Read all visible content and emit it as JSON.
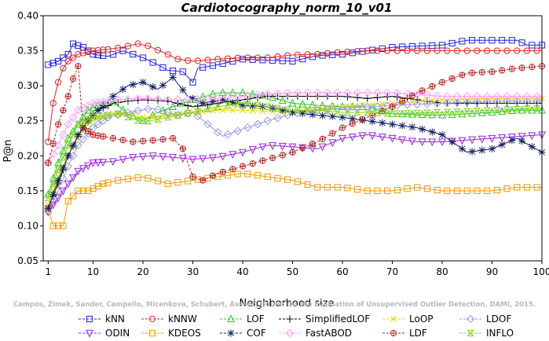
{
  "chart_data": {
    "type": "line",
    "title": "Cardiotocography_norm_10_v01",
    "xlabel": "Neighborhood size",
    "ylabel": "P@n",
    "xlim": [
      0,
      100
    ],
    "ylim": [
      0.05,
      0.4
    ],
    "xticks": [
      1,
      10,
      20,
      30,
      40,
      50,
      60,
      70,
      80,
      90,
      100
    ],
    "yticks": [
      0.05,
      0.1,
      0.15,
      0.2,
      0.25,
      0.3,
      0.35,
      0.4
    ],
    "xtick_labels": [
      "1",
      "10",
      "20",
      "30",
      "40",
      "50",
      "60",
      "70",
      "80",
      "90",
      "100"
    ],
    "ytick_labels": [
      "0.05",
      "0.10",
      "0.15",
      "0.20",
      "0.25",
      "0.30",
      "0.35",
      "0.40"
    ],
    "grid": false,
    "legend_position": "bottom",
    "watermark": "Campos, Zimek, Sander, Campello, Micenkova, Schubert, Assent, Houle: On the Evaluation of Unsupervised Outlier Detection, DAMI, 2015.",
    "series": [
      {
        "name": "kNN",
        "color": "#2222dd",
        "marker": "square",
        "dashed": false,
        "points": [
          [
            1,
            0.33
          ],
          [
            3,
            0.335
          ],
          [
            5,
            0.345
          ],
          [
            6,
            0.36
          ],
          [
            8,
            0.355
          ],
          [
            10,
            0.345
          ],
          [
            13,
            0.342
          ],
          [
            16,
            0.35
          ],
          [
            20,
            0.34
          ],
          [
            23,
            0.33
          ],
          [
            25,
            0.322
          ],
          [
            28,
            0.32
          ],
          [
            30,
            0.305
          ],
          [
            31,
            0.325
          ],
          [
            35,
            0.33
          ],
          [
            40,
            0.338
          ],
          [
            50,
            0.335
          ],
          [
            55,
            0.343
          ],
          [
            60,
            0.345
          ],
          [
            65,
            0.35
          ],
          [
            70,
            0.355
          ],
          [
            80,
            0.358
          ],
          [
            85,
            0.365
          ],
          [
            95,
            0.365
          ],
          [
            97,
            0.358
          ],
          [
            100,
            0.358
          ]
        ]
      },
      {
        "name": "kNNW",
        "color": "#dd2222",
        "marker": "circle",
        "dashed": false,
        "points": [
          [
            1,
            0.22
          ],
          [
            2,
            0.275
          ],
          [
            3,
            0.305
          ],
          [
            4,
            0.325
          ],
          [
            5,
            0.335
          ],
          [
            7,
            0.345
          ],
          [
            10,
            0.35
          ],
          [
            13,
            0.352
          ],
          [
            16,
            0.355
          ],
          [
            19,
            0.36
          ],
          [
            21,
            0.357
          ],
          [
            24,
            0.348
          ],
          [
            27,
            0.338
          ],
          [
            30,
            0.335
          ],
          [
            35,
            0.338
          ],
          [
            40,
            0.34
          ],
          [
            45,
            0.34
          ],
          [
            50,
            0.344
          ],
          [
            55,
            0.345
          ],
          [
            60,
            0.348
          ],
          [
            65,
            0.35
          ],
          [
            70,
            0.35
          ],
          [
            75,
            0.35
          ],
          [
            80,
            0.35
          ],
          [
            90,
            0.35
          ],
          [
            100,
            0.35
          ]
        ]
      },
      {
        "name": "LOF",
        "color": "#22cc22",
        "marker": "triangle",
        "dashed": false,
        "points": [
          [
            1,
            0.145
          ],
          [
            3,
            0.19
          ],
          [
            5,
            0.225
          ],
          [
            7,
            0.245
          ],
          [
            9,
            0.265
          ],
          [
            11,
            0.272
          ],
          [
            14,
            0.277
          ],
          [
            17,
            0.26
          ],
          [
            20,
            0.25
          ],
          [
            23,
            0.262
          ],
          [
            26,
            0.27
          ],
          [
            30,
            0.28
          ],
          [
            35,
            0.29
          ],
          [
            40,
            0.29
          ],
          [
            45,
            0.285
          ],
          [
            50,
            0.275
          ],
          [
            55,
            0.272
          ],
          [
            60,
            0.27
          ],
          [
            65,
            0.27
          ],
          [
            70,
            0.26
          ],
          [
            80,
            0.258
          ],
          [
            90,
            0.262
          ],
          [
            95,
            0.265
          ],
          [
            100,
            0.265
          ]
        ]
      },
      {
        "name": "SimplifiedLOF",
        "color": "#000000",
        "marker": "plus",
        "dashed": false,
        "points": [
          [
            1,
            0.125
          ],
          [
            3,
            0.16
          ],
          [
            5,
            0.2
          ],
          [
            7,
            0.228
          ],
          [
            9,
            0.252
          ],
          [
            11,
            0.265
          ],
          [
            14,
            0.275
          ],
          [
            17,
            0.278
          ],
          [
            20,
            0.28
          ],
          [
            25,
            0.278
          ],
          [
            30,
            0.27
          ],
          [
            35,
            0.275
          ],
          [
            40,
            0.28
          ],
          [
            45,
            0.285
          ],
          [
            50,
            0.285
          ],
          [
            55,
            0.285
          ],
          [
            60,
            0.285
          ],
          [
            65,
            0.282
          ],
          [
            70,
            0.285
          ],
          [
            75,
            0.28
          ],
          [
            80,
            0.275
          ],
          [
            90,
            0.275
          ],
          [
            100,
            0.275
          ]
        ]
      },
      {
        "name": "LoOP",
        "color": "#dddd00",
        "marker": "x",
        "dashed": false,
        "points": [
          [
            1,
            0.13
          ],
          [
            3,
            0.17
          ],
          [
            5,
            0.2
          ],
          [
            7,
            0.225
          ],
          [
            9,
            0.245
          ],
          [
            11,
            0.255
          ],
          [
            15,
            0.262
          ],
          [
            20,
            0.255
          ],
          [
            25,
            0.258
          ],
          [
            30,
            0.262
          ],
          [
            35,
            0.265
          ],
          [
            40,
            0.265
          ],
          [
            50,
            0.262
          ],
          [
            60,
            0.27
          ],
          [
            70,
            0.275
          ],
          [
            80,
            0.28
          ],
          [
            90,
            0.282
          ],
          [
            100,
            0.282
          ]
        ]
      },
      {
        "name": "LDOF",
        "color": "#9999ee",
        "marker": "diamond",
        "dashed": false,
        "points": [
          [
            1,
            0.12
          ],
          [
            3,
            0.15
          ],
          [
            5,
            0.185
          ],
          [
            7,
            0.215
          ],
          [
            10,
            0.24
          ],
          [
            13,
            0.255
          ],
          [
            17,
            0.262
          ],
          [
            22,
            0.268
          ],
          [
            27,
            0.258
          ],
          [
            30,
            0.262
          ],
          [
            33,
            0.245
          ],
          [
            36,
            0.228
          ],
          [
            40,
            0.238
          ],
          [
            45,
            0.25
          ],
          [
            50,
            0.26
          ],
          [
            55,
            0.265
          ],
          [
            60,
            0.268
          ],
          [
            70,
            0.272
          ],
          [
            80,
            0.275
          ],
          [
            90,
            0.278
          ],
          [
            100,
            0.278
          ]
        ]
      },
      {
        "name": "ODIN",
        "color": "#9922dd",
        "marker": "triangle-down",
        "dashed": false,
        "points": [
          [
            1,
            0.12
          ],
          [
            3,
            0.14
          ],
          [
            5,
            0.16
          ],
          [
            7,
            0.178
          ],
          [
            10,
            0.19
          ],
          [
            14,
            0.192
          ],
          [
            18,
            0.198
          ],
          [
            22,
            0.2
          ],
          [
            26,
            0.198
          ],
          [
            30,
            0.195
          ],
          [
            35,
            0.198
          ],
          [
            40,
            0.205
          ],
          [
            45,
            0.215
          ],
          [
            50,
            0.213
          ],
          [
            55,
            0.21
          ],
          [
            60,
            0.225
          ],
          [
            65,
            0.23
          ],
          [
            70,
            0.225
          ],
          [
            75,
            0.22
          ],
          [
            80,
            0.22
          ],
          [
            90,
            0.225
          ],
          [
            100,
            0.23
          ]
        ]
      },
      {
        "name": "KDEOS",
        "color": "#ee9900",
        "marker": "square",
        "dashed": false,
        "points": [
          [
            1,
            0.125
          ],
          [
            2,
            0.1
          ],
          [
            3,
            0.1
          ],
          [
            4,
            0.1
          ],
          [
            5,
            0.135
          ],
          [
            7,
            0.15
          ],
          [
            9,
            0.15
          ],
          [
            12,
            0.16
          ],
          [
            15,
            0.165
          ],
          [
            20,
            0.17
          ],
          [
            25,
            0.16
          ],
          [
            30,
            0.165
          ],
          [
            35,
            0.17
          ],
          [
            40,
            0.175
          ],
          [
            45,
            0.17
          ],
          [
            50,
            0.165
          ],
          [
            55,
            0.155
          ],
          [
            60,
            0.155
          ],
          [
            65,
            0.15
          ],
          [
            70,
            0.15
          ],
          [
            75,
            0.155
          ],
          [
            80,
            0.15
          ],
          [
            85,
            0.15
          ],
          [
            90,
            0.15
          ],
          [
            95,
            0.155
          ],
          [
            100,
            0.155
          ]
        ]
      },
      {
        "name": "COF",
        "color": "#112266",
        "marker": "star",
        "dashed": false,
        "points": [
          [
            1,
            0.125
          ],
          [
            3,
            0.165
          ],
          [
            5,
            0.2
          ],
          [
            7,
            0.23
          ],
          [
            9,
            0.25
          ],
          [
            11,
            0.265
          ],
          [
            14,
            0.285
          ],
          [
            17,
            0.3
          ],
          [
            20,
            0.305
          ],
          [
            23,
            0.295
          ],
          [
            26,
            0.312
          ],
          [
            29,
            0.285
          ],
          [
            32,
            0.275
          ],
          [
            36,
            0.28
          ],
          [
            40,
            0.272
          ],
          [
            45,
            0.27
          ],
          [
            50,
            0.262
          ],
          [
            55,
            0.258
          ],
          [
            60,
            0.255
          ],
          [
            65,
            0.25
          ],
          [
            70,
            0.245
          ],
          [
            75,
            0.24
          ],
          [
            80,
            0.23
          ],
          [
            85,
            0.205
          ],
          [
            90,
            0.21
          ],
          [
            95,
            0.225
          ],
          [
            100,
            0.205
          ]
        ]
      },
      {
        "name": "FastABOD",
        "color": "#ff99ff",
        "marker": "diamond",
        "dashed": false,
        "points": [
          [
            1,
            0.19
          ],
          [
            3,
            0.215
          ],
          [
            5,
            0.245
          ],
          [
            7,
            0.265
          ],
          [
            10,
            0.275
          ],
          [
            15,
            0.28
          ],
          [
            20,
            0.282
          ],
          [
            25,
            0.28
          ],
          [
            30,
            0.28
          ],
          [
            35,
            0.282
          ],
          [
            40,
            0.285
          ],
          [
            45,
            0.288
          ],
          [
            50,
            0.29
          ],
          [
            60,
            0.29
          ],
          [
            70,
            0.29
          ],
          [
            80,
            0.285
          ],
          [
            90,
            0.285
          ],
          [
            100,
            0.285
          ]
        ]
      },
      {
        "name": "LDF",
        "color": "#bb2222",
        "marker": "circle-plus",
        "dashed": true,
        "points": [
          [
            1,
            0.19
          ],
          [
            3,
            0.245
          ],
          [
            5,
            0.285
          ],
          [
            6,
            0.31
          ],
          [
            7,
            0.328
          ],
          [
            8,
            0.24
          ],
          [
            10,
            0.23
          ],
          [
            14,
            0.225
          ],
          [
            18,
            0.22
          ],
          [
            22,
            0.222
          ],
          [
            26,
            0.225
          ],
          [
            28,
            0.21
          ],
          [
            30,
            0.17
          ],
          [
            32,
            0.165
          ],
          [
            35,
            0.175
          ],
          [
            40,
            0.185
          ],
          [
            45,
            0.195
          ],
          [
            50,
            0.205
          ],
          [
            55,
            0.22
          ],
          [
            60,
            0.24
          ],
          [
            65,
            0.255
          ],
          [
            70,
            0.27
          ],
          [
            75,
            0.29
          ],
          [
            80,
            0.305
          ],
          [
            85,
            0.318
          ],
          [
            90,
            0.32
          ],
          [
            95,
            0.325
          ],
          [
            100,
            0.328
          ]
        ]
      },
      {
        "name": "INFLO",
        "color": "#88cc22",
        "marker": "hourglass",
        "dashed": false,
        "points": [
          [
            1,
            0.14
          ],
          [
            3,
            0.18
          ],
          [
            5,
            0.215
          ],
          [
            7,
            0.245
          ],
          [
            10,
            0.255
          ],
          [
            15,
            0.26
          ],
          [
            20,
            0.248
          ],
          [
            25,
            0.255
          ],
          [
            30,
            0.262
          ],
          [
            35,
            0.27
          ],
          [
            40,
            0.275
          ],
          [
            45,
            0.27
          ],
          [
            50,
            0.265
          ],
          [
            55,
            0.265
          ],
          [
            60,
            0.262
          ],
          [
            65,
            0.262
          ],
          [
            70,
            0.26
          ],
          [
            80,
            0.262
          ],
          [
            90,
            0.265
          ],
          [
            100,
            0.268
          ]
        ]
      }
    ]
  }
}
